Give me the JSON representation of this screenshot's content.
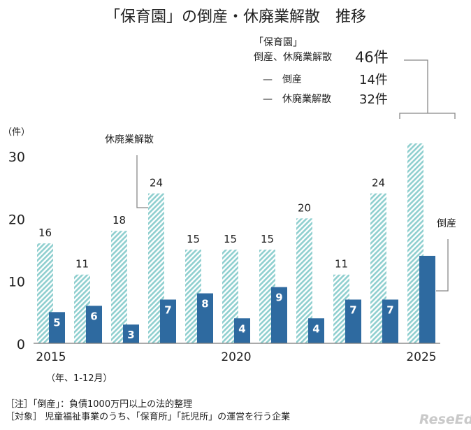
{
  "title": "「保育園」の倒産・休廃業解散　推移",
  "summary": {
    "heading_line1": "「保育園」",
    "heading_line2": "倒産、休廃業解散",
    "total": "46件",
    "bankruptcy_label": "—　倒産",
    "bankruptcy_value": "14件",
    "closure_label": "—　休廃業解散",
    "closure_value": "32件"
  },
  "notes": {
    "note1": "［注］「倒産」：負債1000万円以上の法的整理",
    "note2": "［対象］ 児童福祉事業のうち、「保育所」「託児所」の運営を行う企業"
  },
  "watermark": "ReseEd",
  "chart_data": {
    "type": "bar",
    "title": "「保育園」の倒産・休廃業解散　推移",
    "ylabel": "（件）",
    "xlabel": "（年、1-12月）",
    "ylim": [
      0,
      30
    ],
    "yticks": [
      0,
      10,
      20,
      30
    ],
    "categories": [
      "2015",
      "2016",
      "2017",
      "2018",
      "2019",
      "2020",
      "2021",
      "2022",
      "2023",
      "2024",
      "2025"
    ],
    "xtick_labels": {
      "0": "2015",
      "5": "2020",
      "10": "2025"
    },
    "grid": false,
    "series": [
      {
        "name": "休廃業解散",
        "values": [
          16,
          11,
          18,
          24,
          15,
          15,
          15,
          20,
          11,
          24,
          32
        ],
        "color": "#8fcfcf",
        "pattern": "diagonal-hatch",
        "show_labels": [
          true,
          true,
          true,
          true,
          true,
          true,
          true,
          true,
          true,
          true,
          false
        ]
      },
      {
        "name": "倒産",
        "values": [
          5,
          6,
          3,
          7,
          8,
          4,
          9,
          4,
          7,
          7,
          14
        ],
        "color": "#2e6aa0",
        "show_labels": [
          true,
          true,
          true,
          true,
          true,
          true,
          true,
          true,
          true,
          true,
          false
        ]
      }
    ]
  }
}
